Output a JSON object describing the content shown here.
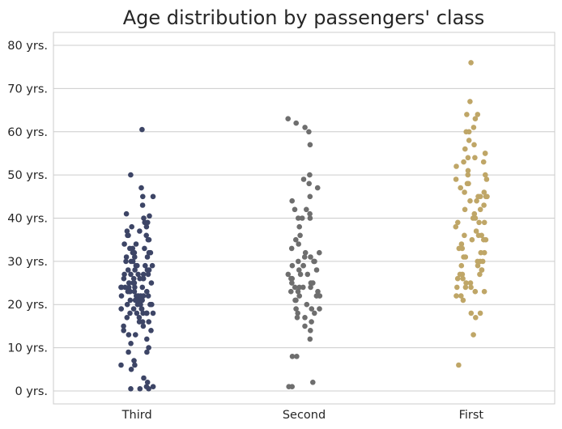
{
  "chart_data": {
    "type": "scatter",
    "subtype": "strip",
    "title": "Age distribution by passengers' class",
    "xlabel": "",
    "ylabel": "",
    "categories": [
      "Third",
      "Second",
      "First"
    ],
    "ylim": [
      -3,
      83
    ],
    "yticks": [
      0,
      10,
      20,
      30,
      40,
      50,
      60,
      70,
      80
    ],
    "ytick_labels": [
      "0 yrs.",
      "10 yrs.",
      "20 yrs.",
      "30 yrs.",
      "40 yrs.",
      "50 yrs.",
      "60 yrs.",
      "70 yrs.",
      "80 yrs."
    ],
    "grid": "horizontal",
    "legend": "none",
    "colors": {
      "Third": "#3d4566",
      "Second": "#6e6e6e",
      "First": "#bfa667",
      "grid": "#cccccc",
      "frame": "#cccccc",
      "text": "#262626"
    },
    "series": [
      {
        "name": "Third",
        "values": [
          60.5,
          50,
          47,
          45,
          45,
          43,
          41,
          40.5,
          40,
          39,
          39,
          38,
          38,
          37,
          37,
          36,
          36,
          36,
          35,
          35,
          34,
          34,
          33,
          33,
          33,
          32,
          32,
          32,
          32,
          31,
          31,
          31,
          30,
          30,
          30,
          29,
          29,
          29,
          29,
          28,
          28,
          28,
          28,
          27,
          27,
          27,
          27,
          27,
          26,
          26,
          26,
          26,
          26,
          25,
          25,
          25,
          25,
          25,
          24,
          24,
          24,
          24,
          24,
          24,
          23,
          23,
          23,
          23,
          23,
          22,
          22,
          22,
          22,
          22,
          22,
          21,
          21,
          21,
          21,
          21,
          21,
          20,
          20,
          20,
          20,
          20,
          19,
          19,
          19,
          19,
          18,
          18,
          18,
          18,
          18,
          18,
          17,
          17,
          16,
          16,
          16,
          15,
          15,
          14,
          14,
          13,
          13,
          12,
          11,
          10,
          9,
          9,
          7,
          6,
          6,
          5,
          3,
          2,
          1,
          1,
          0.5,
          0.5,
          0.5
        ]
      },
      {
        "name": "Second",
        "values": [
          63,
          62,
          61,
          60,
          57,
          50,
          49,
          48,
          47,
          45,
          44,
          42,
          42,
          41,
          40,
          40,
          40,
          38,
          36,
          35,
          34,
          33,
          32,
          32,
          31,
          31,
          30,
          30,
          30,
          29,
          29,
          29,
          28,
          28,
          27,
          27,
          27,
          26,
          26,
          26,
          25,
          25,
          25,
          24,
          24,
          24,
          24,
          23,
          23,
          23,
          22,
          22,
          22,
          21,
          21,
          20,
          19,
          19,
          19,
          18,
          18,
          17,
          17,
          16,
          15,
          14,
          12,
          8,
          8,
          2,
          1,
          1
        ]
      },
      {
        "name": "First",
        "values": [
          76,
          67,
          64,
          64,
          63,
          61,
          60,
          60,
          58,
          57,
          56,
          55,
          55,
          54,
          54,
          53,
          53,
          52,
          51,
          50,
          50,
          49,
          49,
          48,
          48,
          47,
          46,
          46,
          45,
          45,
          45,
          45,
          44,
          44,
          43,
          42,
          42,
          41,
          40,
          40,
          39,
          39,
          39,
          38,
          37,
          36,
          36,
          36,
          35,
          35,
          35,
          34,
          33,
          33,
          32,
          32,
          31,
          31,
          30,
          30,
          30,
          29,
          29,
          28,
          28,
          27,
          27,
          27,
          26,
          26,
          25,
          25,
          24,
          24,
          24,
          23,
          23,
          22,
          22,
          21,
          18,
          18,
          17,
          13,
          6
        ]
      }
    ]
  }
}
